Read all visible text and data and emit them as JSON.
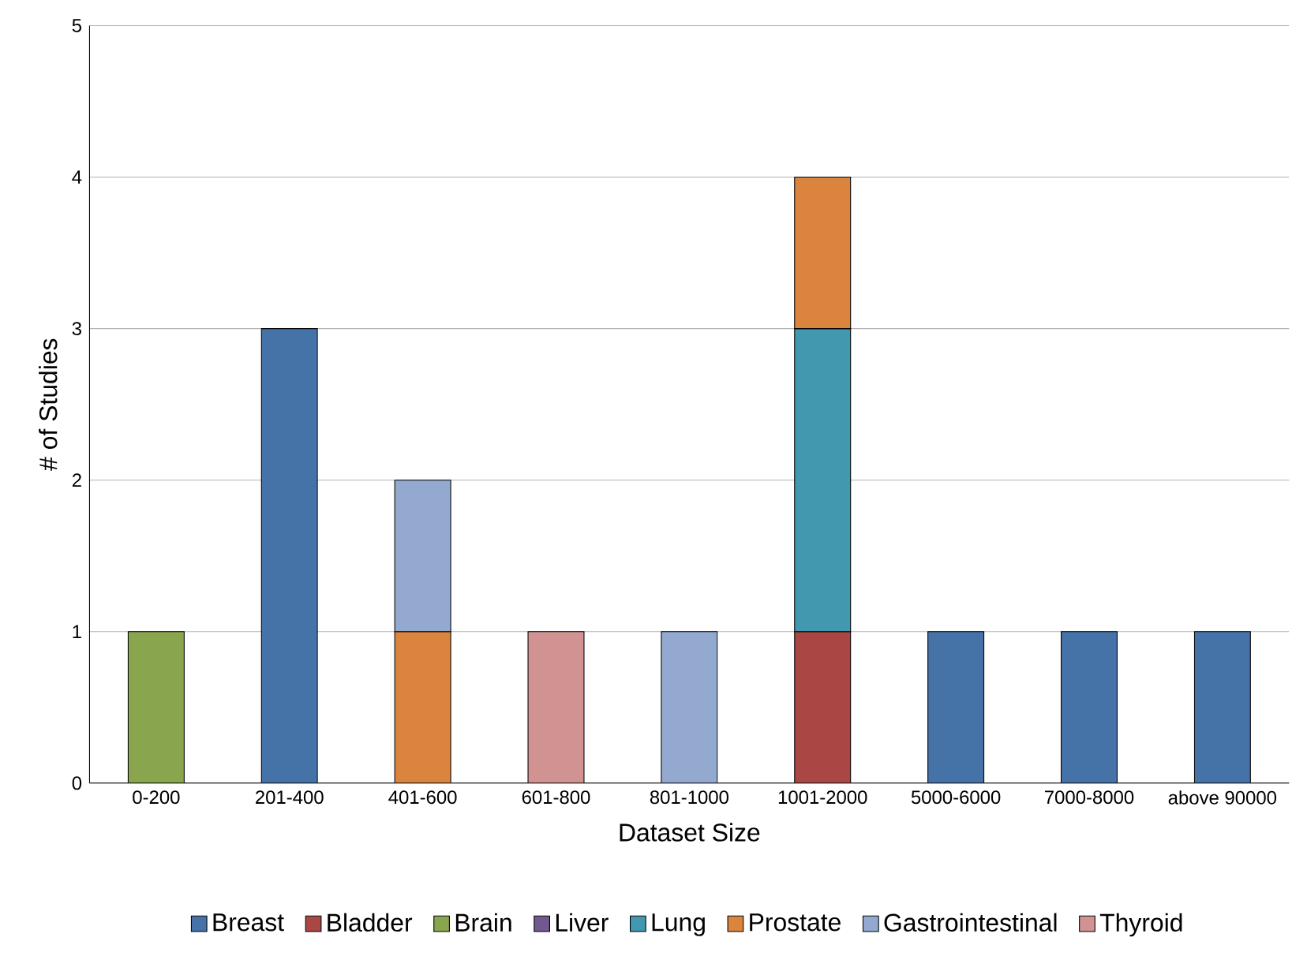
{
  "chart_data": {
    "type": "bar",
    "stacked": true,
    "xlabel": "Dataset Size",
    "ylabel": "# of Studies",
    "categories": [
      "0-200",
      "201-400",
      "401-600",
      "601-800",
      "801-1000",
      "1001-2000",
      "5000-6000",
      "7000-8000",
      "above 90000"
    ],
    "ylim": [
      0,
      5
    ],
    "yticks": [
      0,
      1,
      2,
      3,
      4,
      5
    ],
    "grid": "y",
    "legend": "bottom",
    "series": [
      {
        "name": "Breast",
        "color": "#4572a7",
        "values": [
          0,
          3,
          0,
          0,
          0,
          0,
          1,
          1,
          1
        ]
      },
      {
        "name": "Bladder",
        "color": "#aa4643",
        "values": [
          0,
          0,
          0,
          0,
          0,
          1,
          0,
          0,
          0
        ]
      },
      {
        "name": "Brain",
        "color": "#89a54e",
        "values": [
          1,
          0,
          0,
          0,
          0,
          0,
          0,
          0,
          0
        ]
      },
      {
        "name": "Liver",
        "color": "#71588f",
        "values": [
          0,
          0,
          0,
          0,
          0,
          0,
          0,
          0,
          0
        ]
      },
      {
        "name": "Lung",
        "color": "#4198af",
        "values": [
          0,
          0,
          0,
          0,
          0,
          2,
          0,
          0,
          0
        ]
      },
      {
        "name": "Prostate",
        "color": "#db843d",
        "values": [
          0,
          0,
          1,
          0,
          0,
          1,
          0,
          0,
          0
        ]
      },
      {
        "name": "Gastrointestinal",
        "color": "#93a9cf",
        "values": [
          0,
          0,
          1,
          0,
          1,
          0,
          0,
          0,
          0
        ]
      },
      {
        "name": "Thyroid",
        "color": "#d19392",
        "values": [
          0,
          0,
          0,
          1,
          0,
          0,
          0,
          0,
          0
        ]
      }
    ]
  }
}
